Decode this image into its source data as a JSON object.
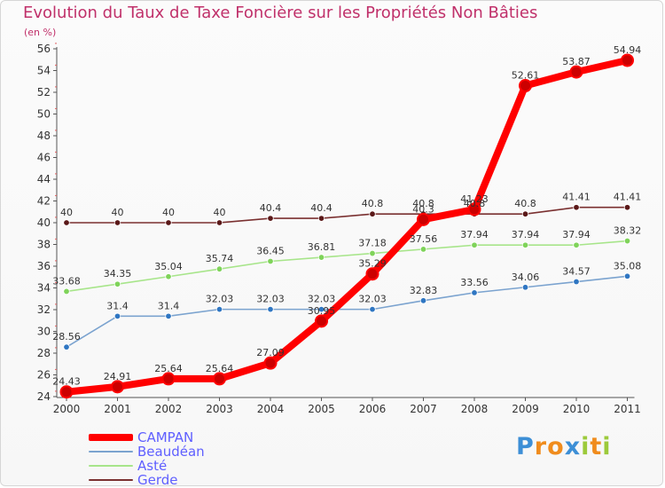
{
  "chart_data": {
    "type": "line",
    "title": "Evolution du Taux de Taxe Foncière sur les Propriétés Non Bâties",
    "ylabel": "(en %)",
    "xlabel": "",
    "categories": [
      "2000",
      "2001",
      "2002",
      "2003",
      "2004",
      "2005",
      "2006",
      "2007",
      "2008",
      "2009",
      "2010",
      "2011"
    ],
    "y_ticks": [
      "24",
      "26",
      "28",
      "30",
      "32",
      "34",
      "36",
      "38",
      "40",
      "42",
      "44",
      "46",
      "48",
      "50",
      "52",
      "54",
      "56"
    ],
    "ylim": [
      24,
      56
    ],
    "series": [
      {
        "name": "CAMPAN",
        "color": "#ff0000",
        "point_color": "#cc0000",
        "emphasis": true,
        "values": [
          24.43,
          24.91,
          25.64,
          25.64,
          27.09,
          30.95,
          35.29,
          40.3,
          41.23,
          52.61,
          53.87,
          54.94
        ],
        "labels": [
          "24.43",
          "24.91",
          "25.64",
          "25.64",
          "27.09",
          "30.95",
          "35.29",
          "40.3",
          "41.23",
          "52.61",
          "53.87",
          "54.94"
        ]
      },
      {
        "name": "Beaudéan",
        "color": "#7ba3cf",
        "point_color": "#2f76c2",
        "emphasis": false,
        "values": [
          28.56,
          31.4,
          31.4,
          32.03,
          32.03,
          32.03,
          32.03,
          32.83,
          33.56,
          34.06,
          34.57,
          35.08
        ],
        "labels": [
          "28.56",
          "31.4",
          "31.4",
          "32.03",
          "32.03",
          "32.03",
          "32.03",
          "32.83",
          "33.56",
          "34.06",
          "34.57",
          "35.08"
        ]
      },
      {
        "name": "Asté",
        "color": "#a7e58a",
        "point_color": "#7fd35a",
        "emphasis": false,
        "values": [
          33.68,
          34.35,
          35.04,
          35.74,
          36.45,
          36.81,
          37.18,
          37.56,
          37.94,
          37.94,
          37.94,
          38.32
        ],
        "labels": [
          "33.68",
          "34.35",
          "35.04",
          "35.74",
          "36.45",
          "36.81",
          "37.18",
          "37.56",
          "37.94",
          "37.94",
          "37.94",
          "38.32"
        ]
      },
      {
        "name": "Gerde",
        "color": "#7a3030",
        "point_color": "#5a1818",
        "emphasis": false,
        "values": [
          40,
          40,
          40,
          40,
          40.4,
          40.4,
          40.8,
          40.8,
          40.8,
          40.8,
          41.41,
          41.41
        ],
        "labels": [
          "40",
          "40",
          "40",
          "40",
          "40.4",
          "40.4",
          "40.8",
          "40.8",
          "40.8",
          "40.8",
          "41.41",
          "41.41"
        ]
      }
    ],
    "grid": false,
    "legend_position": "bottom-left"
  },
  "brand": {
    "letters": [
      "P",
      "r",
      "o",
      "x",
      "i",
      "t",
      "i"
    ],
    "colors": [
      "#3d8fd6",
      "#f08c1d",
      "#f08c1d",
      "#3d8fd6",
      "#9cca3b",
      "#f08c1d",
      "#9cca3b"
    ]
  }
}
